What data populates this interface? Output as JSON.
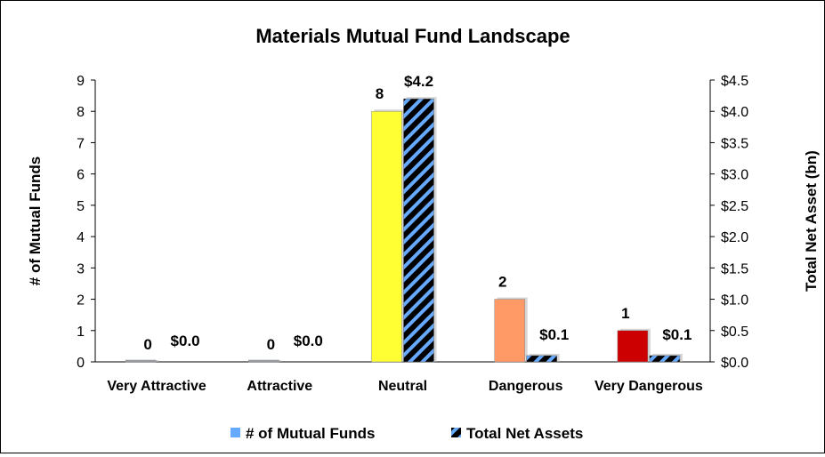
{
  "chart_data": {
    "type": "bar",
    "title": "Materials Mutual Fund Landscape",
    "categories": [
      "Very Attractive",
      "Attractive",
      "Neutral",
      "Dangerous",
      "Very Dangerous"
    ],
    "series": [
      {
        "name": "# of Mutual Funds",
        "axis": "left",
        "values": [
          0,
          0,
          8,
          2,
          1
        ],
        "labels": [
          "0",
          "0",
          "8",
          "2",
          "1"
        ],
        "colors": [
          "#9aa0a6",
          "#9aa0a6",
          "#ffff33",
          "#ff9966",
          "#cc0000"
        ]
      },
      {
        "name": "Total Net Assets",
        "axis": "right",
        "values": [
          0.0,
          0.0,
          4.2,
          0.1,
          0.1
        ],
        "labels": [
          "$0.0",
          "$0.0",
          "$4.2",
          "$0.1",
          "$0.1"
        ],
        "pattern_colors": [
          "#66aaff",
          "#000000"
        ]
      }
    ],
    "ylabel": "# of Mutual Funds",
    "y2label": "Total Net Asset (bn)",
    "ylim": [
      0,
      9
    ],
    "y2lim": [
      0,
      4.5
    ],
    "yticks": [
      "0",
      "1",
      "2",
      "3",
      "4",
      "5",
      "6",
      "7",
      "8",
      "9"
    ],
    "y2ticks": [
      "$0.0",
      "$0.5",
      "$1.0",
      "$1.5",
      "$2.0",
      "$2.5",
      "$3.0",
      "$3.5",
      "$4.0",
      "$4.5"
    ],
    "legend_position": "bottom",
    "grid": false
  }
}
